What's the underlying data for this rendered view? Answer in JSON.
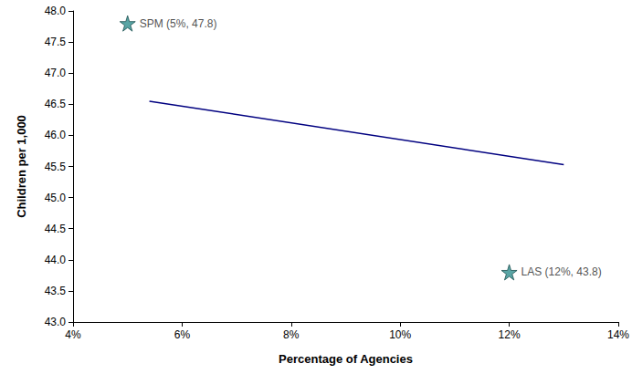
{
  "chart_data": {
    "type": "scatter",
    "x_label": "Percentage of Agencies",
    "y_label": "Children per 1,000",
    "xlim": [
      4,
      14
    ],
    "xticks": [
      {
        "value": 4,
        "label": "4%"
      },
      {
        "value": 6,
        "label": "6%"
      },
      {
        "value": 8,
        "label": "8%"
      },
      {
        "value": 10,
        "label": "10%"
      },
      {
        "value": 12,
        "label": "12%"
      },
      {
        "value": 14,
        "label": "14%"
      }
    ],
    "ylim": [
      43,
      48
    ],
    "yticks": [
      {
        "value": 43,
        "label": "43.0"
      },
      43.5,
      {
        "value": 44,
        "label": "44.0"
      },
      44.5,
      {
        "value": 45,
        "label": "45.0"
      },
      45.5,
      {
        "value": 46,
        "label": "46.0"
      },
      46.5,
      {
        "value": 47,
        "label": "47.0"
      },
      47.5,
      {
        "value": 48,
        "label": "48.0"
      }
    ],
    "grid": false,
    "series": [
      {
        "type": "scatter",
        "marker": "star",
        "color": "#2f8f8f",
        "x": [
          5,
          12
        ],
        "values": [
          47.8,
          43.8
        ],
        "annotations": [
          "SPM (5%, 47.8)",
          "LAS (12%, 43.8)"
        ]
      },
      {
        "type": "line",
        "line_style": "solid",
        "color": "#000080",
        "x": [
          5.4,
          13
        ],
        "values": [
          46.55,
          45.53
        ]
      }
    ]
  }
}
